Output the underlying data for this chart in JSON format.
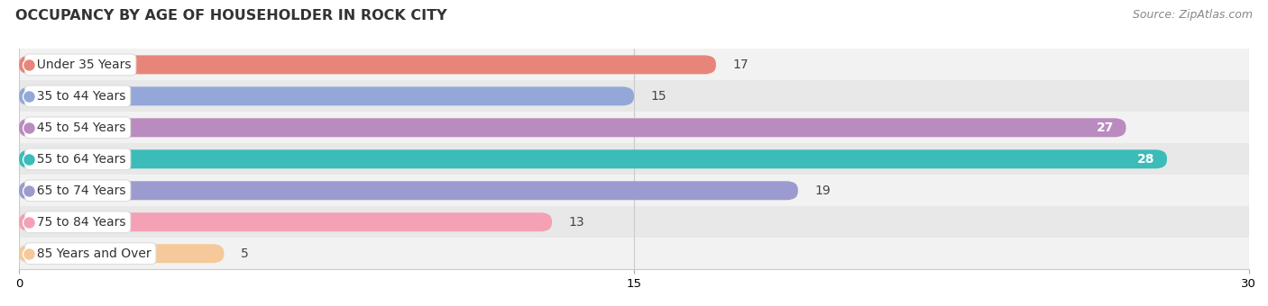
{
  "title": "OCCUPANCY BY AGE OF HOUSEHOLDER IN ROCK CITY",
  "source": "Source: ZipAtlas.com",
  "categories": [
    "Under 35 Years",
    "35 to 44 Years",
    "45 to 54 Years",
    "55 to 64 Years",
    "65 to 74 Years",
    "75 to 84 Years",
    "85 Years and Over"
  ],
  "values": [
    17,
    15,
    27,
    28,
    19,
    13,
    5
  ],
  "bar_colors": [
    "#E8857A",
    "#93A8D8",
    "#B98BBF",
    "#3BBCB8",
    "#9B9BCF",
    "#F4A0B5",
    "#F5C99A"
  ],
  "xlim": [
    0,
    30
  ],
  "xticks": [
    0,
    15,
    30
  ],
  "bar_height": 0.6,
  "row_bg_light": "#f2f2f2",
  "row_bg_dark": "#e8e8e8",
  "label_fontsize": 10,
  "value_fontsize": 10,
  "title_fontsize": 11.5,
  "source_fontsize": 9,
  "value_inside_threshold": 20
}
